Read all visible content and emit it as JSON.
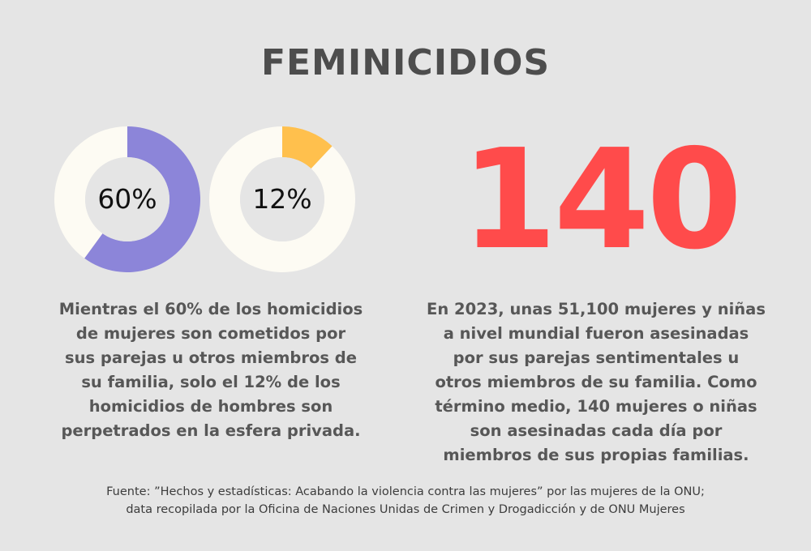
{
  "title": "FEMINICIDIOS",
  "colors": {
    "background": "#e5e5e5",
    "track": "#fdfbf3",
    "women_slice": "#8c85d9",
    "men_slice": "#ffc04d",
    "big_number": "#ff4b4b",
    "text": "#575757"
  },
  "chart_data": [
    {
      "type": "pie",
      "slices": [
        {
          "value": 60
        },
        {
          "value": 40
        }
      ],
      "center_label": "60%"
    },
    {
      "type": "pie",
      "slices": [
        {
          "value": 12
        },
        {
          "value": 88
        }
      ],
      "center_label": "12%"
    }
  ],
  "stat": {
    "number": "140"
  },
  "left_text": [
    "Mientras el 60% de los homicidios",
    "de mujeres son cometidos por",
    "sus parejas u otros miembros de",
    "su familia, solo el 12% de los",
    "homicidios de hombres son",
    "perpetrados en la esfera privada."
  ],
  "right_text": [
    "En 2023, unas 51,100 mujeres y niñas",
    "a nivel mundial fueron asesinadas",
    "por sus parejas sentimentales u",
    "otros miembros de su familia. Como",
    "término medio, 140 mujeres o niñas",
    "son asesinadas cada día por",
    "miembros de sus propias familias."
  ],
  "source": [
    "Fuente: ”Hechos y estadísticas: Acabando la violencia contra las mujeres” por las mujeres de la ONU;",
    "data recopilada por la Oficina de Naciones Unidas de Crimen y Drogadicción y de ONU Mujeres"
  ]
}
